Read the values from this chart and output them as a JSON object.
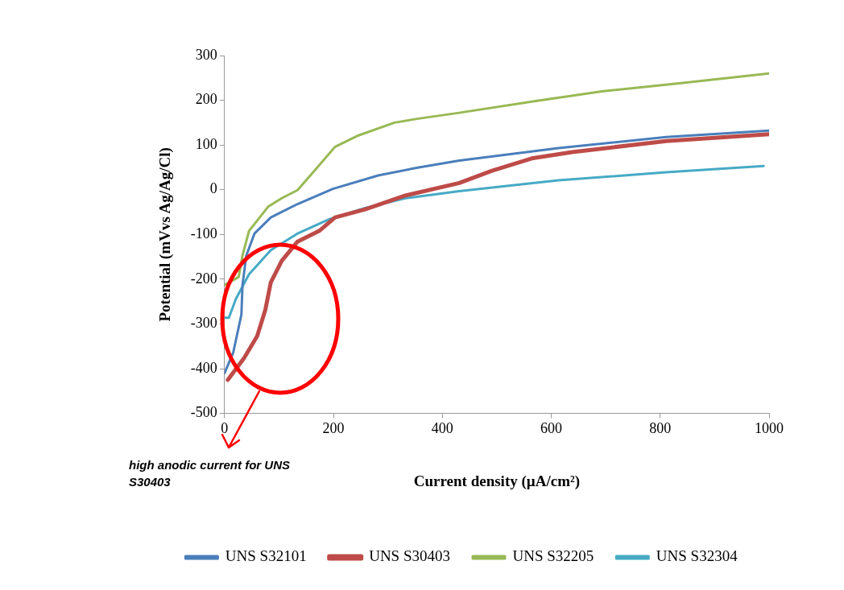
{
  "chart_data": {
    "type": "line",
    "xlabel": "Current density (µA/cm²)",
    "ylabel": "Potential (mVvs Ag/Ag/Cl)",
    "xlim": [
      0,
      1000
    ],
    "xticks": [
      0,
      200,
      400,
      600,
      800,
      1000
    ],
    "ylim": [
      -500,
      300
    ],
    "yticks": [
      -500,
      -400,
      -300,
      -200,
      -100,
      0,
      100,
      200,
      300
    ],
    "grid": false,
    "legend": "bottom",
    "marker": "none",
    "line_style": "solid",
    "annotations": [
      "high anodic current for UNS S30403"
    ],
    "series": [
      {
        "name": "UNS S32101",
        "color": "#4a7ebb",
        "x": [
          0,
          16,
          31,
          33,
          40,
          55,
          85,
          134,
          199,
          282,
          357,
          431,
          613,
          811,
          1000
        ],
        "values": [
          -410,
          -364,
          -279,
          -213,
          -147,
          -98,
          -62,
          -32,
          2,
          32,
          50,
          65,
          93,
          118,
          132
        ]
      },
      {
        "name": "UNS S30403",
        "color": "#be4b48",
        "x": [
          6,
          36,
          60,
          75,
          85,
          105,
          134,
          174,
          203,
          258,
          332,
          431,
          490,
          564,
          638,
          811,
          1000
        ],
        "values": [
          -425,
          -376,
          -327,
          -268,
          -207,
          -159,
          -116,
          -92,
          -62,
          -44,
          -13,
          15,
          42,
          70,
          84,
          109,
          124
        ]
      },
      {
        "name": "UNS S32205",
        "color": "#98b954",
        "x": [
          0,
          26,
          33,
          45,
          80,
          105,
          134,
          164,
          203,
          243,
          312,
          356,
          431,
          564,
          693,
          835,
          1000
        ],
        "values": [
          -213,
          -195,
          -147,
          -92,
          -38,
          -19,
          -1,
          41,
          96,
          120,
          150,
          159,
          172,
          197,
          220,
          238,
          260
        ]
      },
      {
        "name": "UNS S32304",
        "color": "#46aac5",
        "x": [
          0,
          8,
          21,
          45,
          85,
          134,
          194,
          258,
          332,
          431,
          613,
          811,
          990
        ],
        "values": [
          -286,
          -286,
          -244,
          -189,
          -135,
          -98,
          -65,
          -41,
          -19,
          -3,
          21,
          39,
          53
        ]
      }
    ]
  }
}
